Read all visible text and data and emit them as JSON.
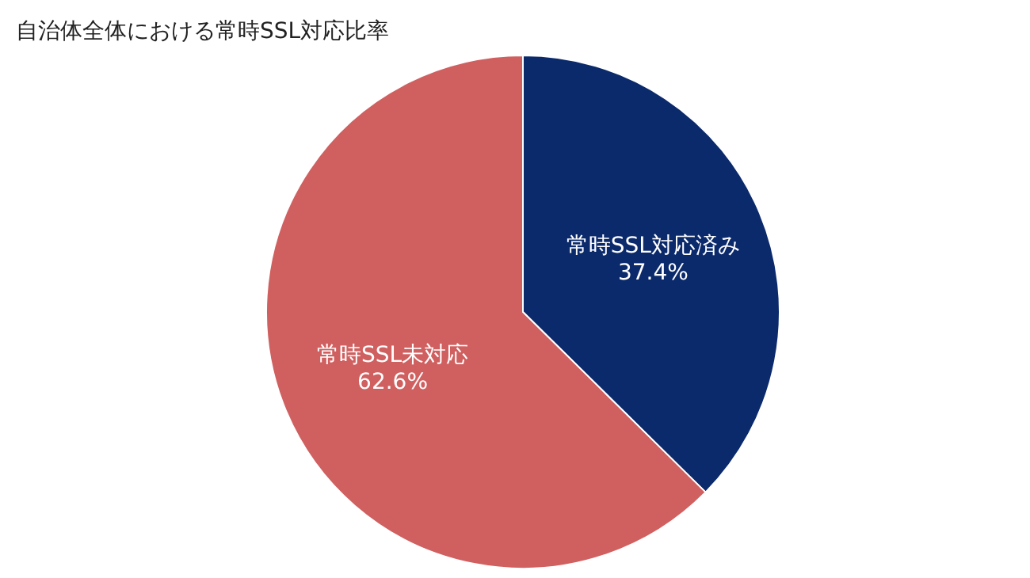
{
  "chart_data": {
    "type": "pie",
    "title": "自治体全体における常時SSL対応比率",
    "categories": [
      "常時SSL対応済み",
      "常時SSL未対応"
    ],
    "values": [
      37.4,
      62.6
    ],
    "value_labels": [
      "37.4%",
      "62.6%"
    ],
    "colors": [
      "#0b2a6b",
      "#d06060"
    ]
  }
}
